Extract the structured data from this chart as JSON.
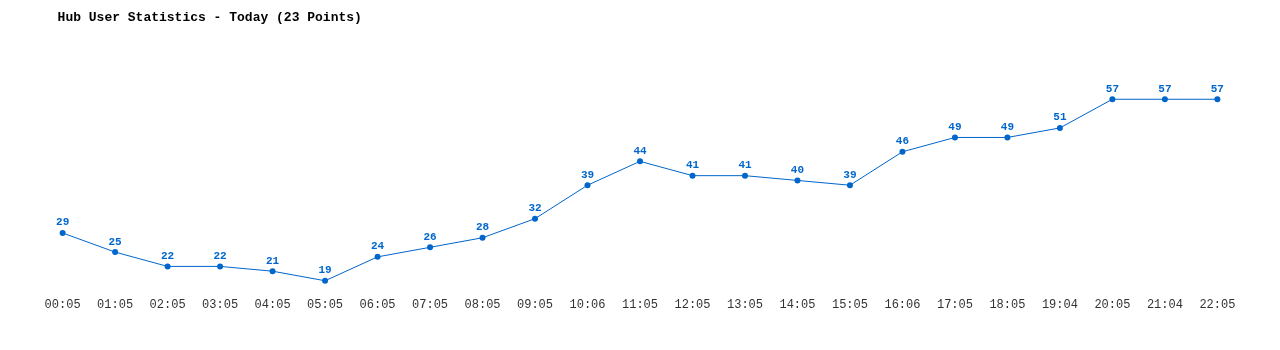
{
  "chart_data": {
    "type": "line",
    "title": "Hub User Statistics - Today (23 Points)",
    "categories": [
      "00:05",
      "01:05",
      "02:05",
      "03:05",
      "04:05",
      "05:05",
      "06:05",
      "07:05",
      "08:05",
      "09:05",
      "10:06",
      "11:05",
      "12:05",
      "13:05",
      "14:05",
      "15:05",
      "16:06",
      "17:05",
      "18:05",
      "19:04",
      "20:05",
      "21:04",
      "22:05"
    ],
    "series": [
      {
        "color": "#0066cc",
        "values": [
          29,
          25,
          22,
          22,
          21,
          19,
          24,
          26,
          28,
          32,
          39,
          44,
          41,
          41,
          40,
          39,
          46,
          49,
          49,
          51,
          57,
          57,
          57
        ]
      }
    ],
    "data_labels": true,
    "grid": false,
    "marker": "circle",
    "line_style": "solid",
    "tick_labels": "x"
  }
}
